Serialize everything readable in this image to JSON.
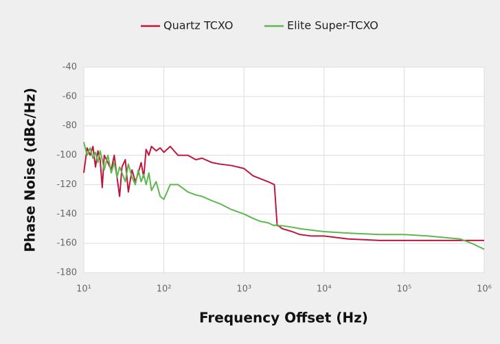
{
  "chart_data": {
    "type": "line",
    "legend_position": "top",
    "x_label": "Frequency Offset (Hz)",
    "y_label": "Phase Noise (dBc/Hz)",
    "x_scale": "log",
    "grid": true,
    "xlim": [
      10,
      1000000
    ],
    "ylim": [
      -180,
      -40
    ],
    "xticks": [
      {
        "value": 10,
        "label": "10¹"
      },
      {
        "value": 100,
        "label": "10²"
      },
      {
        "value": 1000,
        "label": "10³"
      },
      {
        "value": 10000,
        "label": "10⁴"
      },
      {
        "value": 100000,
        "label": "10⁵"
      },
      {
        "value": 1000000,
        "label": "10⁶"
      }
    ],
    "yticks": [
      -180,
      -160,
      -140,
      -120,
      -100,
      -80,
      -60,
      -40
    ],
    "x": [
      10,
      11,
      12,
      13,
      14,
      15,
      16,
      17,
      18,
      20,
      22,
      24,
      26,
      28,
      30,
      33,
      36,
      40,
      44,
      48,
      52,
      56,
      60,
      65,
      70,
      80,
      90,
      100,
      120,
      150,
      200,
      250,
      300,
      400,
      500,
      700,
      1000,
      1300,
      1600,
      2000,
      2400,
      2600,
      2700,
      3000,
      4000,
      5000,
      7000,
      10000,
      20000,
      50000,
      100000,
      200000,
      500000,
      700000,
      1000000
    ],
    "series": [
      {
        "name": "Quartz TCXO",
        "color": "#c0143c",
        "values": [
          -112,
          -95,
          -100,
          -94,
          -108,
          -97,
          -103,
          -122,
          -100,
          -105,
          -110,
          -100,
          -115,
          -128,
          -108,
          -103,
          -125,
          -110,
          -118,
          -112,
          -105,
          -115,
          -96,
          -100,
          -94,
          -97,
          -95,
          -98,
          -94,
          -100,
          -100,
          -103,
          -102,
          -105,
          -106,
          -107,
          -109,
          -114,
          -116,
          -118,
          -120,
          -148,
          -148,
          -150,
          -152,
          -154,
          -155,
          -155,
          -157,
          -158,
          -158,
          -158,
          -158,
          -158,
          -158
        ]
      },
      {
        "name": "Elite Super-TCXO",
        "color": "#5bb84c",
        "values": [
          -91,
          -100,
          -95,
          -102,
          -98,
          -105,
          -97,
          -103,
          -110,
          -100,
          -112,
          -105,
          -115,
          -108,
          -112,
          -118,
          -106,
          -115,
          -120,
          -110,
          -118,
          -113,
          -120,
          -112,
          -124,
          -118,
          -128,
          -130,
          -120,
          -120,
          -125,
          -127,
          -128,
          -131,
          -133,
          -137,
          -140,
          -143,
          -145,
          -146,
          -148,
          -147,
          -148,
          -148,
          -149,
          -150,
          -151,
          -152,
          -153,
          -154,
          -154,
          -155,
          -157,
          -160,
          -164
        ]
      }
    ]
  }
}
